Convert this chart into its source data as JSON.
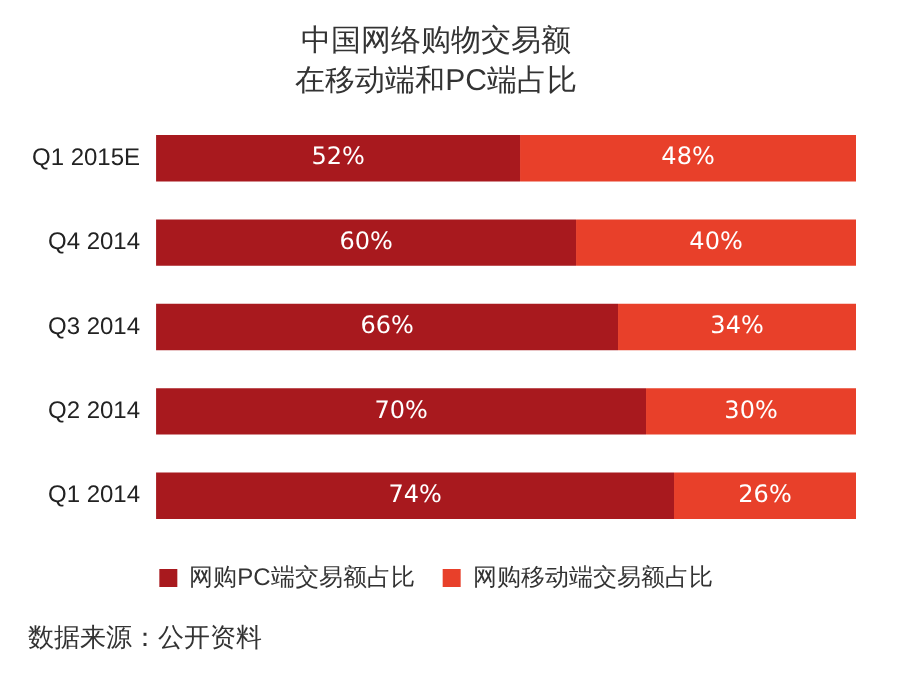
{
  "chart_data": {
    "type": "bar",
    "orientation": "horizontal",
    "stacked": true,
    "title": "中国网络购物交易额",
    "subtitle": "在移动端和PC端占比",
    "categories": [
      "Q1 2015E",
      "Q4 2014",
      "Q3 2014",
      "Q2 2014",
      "Q1 2014"
    ],
    "series": [
      {
        "name": "网购PC端交易额占比",
        "color": "#a8191e",
        "values": [
          52,
          60,
          66,
          70,
          74
        ],
        "value_labels": [
          "52%",
          "60%",
          "66%",
          "70%",
          "74%"
        ]
      },
      {
        "name": "网购移动端交易额占比",
        "color": "#e8402a",
        "values": [
          48,
          40,
          34,
          30,
          26
        ],
        "value_labels": [
          "48%",
          "40%",
          "34%",
          "30%",
          "26%"
        ]
      }
    ],
    "legend": "bottom",
    "grid": false,
    "tick_labels": "y",
    "annotations": [
      "数据来源：公开资料"
    ]
  }
}
